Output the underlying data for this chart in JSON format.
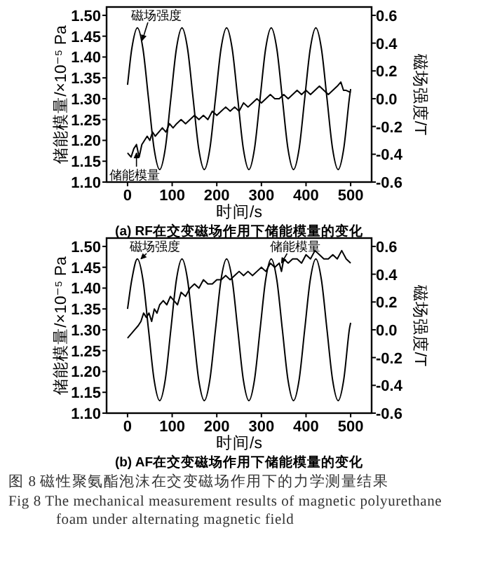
{
  "chart_data": [
    {
      "type": "line",
      "title": "(a) RF在交变磁场作用下储能模量的变化",
      "xlabel": "时间/s",
      "ylabel": "储能模量/×10⁻⁵ Pa",
      "y2label": "磁场强度/T",
      "xlim": [
        -47,
        547
      ],
      "xticks": [
        0,
        100,
        200,
        300,
        400,
        500
      ],
      "ylim": [
        1.1,
        1.52
      ],
      "yticks": [
        {
          "value": 1.1,
          "label": "1.10"
        },
        1.15,
        {
          "value": 1.2,
          "label": "1.20"
        },
        1.25,
        {
          "value": 1.3,
          "label": "1.30"
        },
        1.35,
        {
          "value": 1.4,
          "label": "1.40"
        },
        1.45,
        {
          "value": 1.5,
          "label": "1.50"
        }
      ],
      "y2lim": [
        -0.6,
        0.66
      ],
      "y2ticks": [
        {
          "value": -0.6,
          "label": "-0.6"
        },
        {
          "value": -0.4,
          "label": "-0.4"
        },
        {
          "value": -0.2,
          "label": "-0.2"
        },
        {
          "value": 0,
          "label": "0.0"
        },
        0.2,
        0.4,
        0.6
      ],
      "series": [
        {
          "color": "#000000",
          "axis": "y2",
          "x": [
            0,
            9.5,
            22,
            34.5,
            47,
            59.5,
            72,
            84.5,
            97,
            109.5,
            122,
            134.5,
            147,
            159.5,
            172,
            184.5,
            197,
            209.5,
            222,
            234.5,
            247,
            259.5,
            272,
            284.5,
            297,
            309.5,
            322,
            334.5,
            347,
            359.5,
            372,
            384.5,
            397,
            409.5,
            422,
            434.5,
            447,
            459.5,
            472,
            484.5,
            497,
            500
          ],
          "values": [
            0.1,
            0.36,
            0.51,
            0.36,
            0,
            -0.36,
            -0.51,
            -0.36,
            0,
            0.36,
            0.51,
            0.36,
            0,
            -0.36,
            -0.51,
            -0.36,
            0,
            0.36,
            0.51,
            0.36,
            0,
            -0.36,
            -0.51,
            -0.36,
            0,
            0.36,
            0.51,
            0.36,
            0,
            -0.36,
            -0.51,
            -0.36,
            0,
            0.36,
            0.51,
            0.36,
            0,
            -0.36,
            -0.51,
            -0.36,
            0,
            0.07
          ]
        },
        {
          "color": "#000000",
          "x": [
            0,
            8,
            14,
            20,
            26,
            32,
            38,
            44,
            50,
            56,
            62,
            70,
            78,
            86,
            94,
            102,
            110,
            120,
            130,
            140,
            150,
            160,
            170,
            180,
            190,
            200,
            210,
            220,
            230,
            240,
            250,
            260,
            270,
            280,
            290,
            300,
            310,
            320,
            330,
            340,
            350,
            360,
            370,
            380,
            390,
            400,
            410,
            420,
            430,
            440,
            450,
            460,
            470,
            478,
            484,
            490,
            500
          ],
          "values": [
            1.17,
            1.16,
            1.18,
            1.19,
            1.16,
            1.19,
            1.2,
            1.21,
            1.2,
            1.22,
            1.21,
            1.22,
            1.23,
            1.22,
            1.24,
            1.23,
            1.24,
            1.25,
            1.24,
            1.25,
            1.26,
            1.25,
            1.26,
            1.25,
            1.27,
            1.26,
            1.27,
            1.28,
            1.27,
            1.28,
            1.27,
            1.29,
            1.28,
            1.29,
            1.3,
            1.29,
            1.3,
            1.31,
            1.3,
            1.3,
            1.31,
            1.3,
            1.31,
            1.32,
            1.31,
            1.32,
            1.31,
            1.32,
            1.33,
            1.32,
            1.31,
            1.32,
            1.33,
            1.34,
            1.32,
            1.32,
            1.315
          ]
        }
      ],
      "annotations": [
        {
          "text": "磁场强度",
          "x": 33,
          "y": 1.44
        },
        {
          "text": "储能模量",
          "x": 20,
          "y": 1.17
        }
      ]
    },
    {
      "type": "line",
      "title": "(b) AF在交变磁场作用下储能模量的变化",
      "xlabel": "时间/s",
      "ylabel": "储能模量/×10⁻⁵ Pa",
      "y2label": "磁场强度/T",
      "xlim": [
        -47,
        547
      ],
      "xticks": [
        0,
        100,
        200,
        300,
        400,
        500
      ],
      "ylim": [
        1.1,
        1.52
      ],
      "yticks": [
        {
          "value": 1.1,
          "label": "1.10"
        },
        1.15,
        {
          "value": 1.2,
          "label": "1.20"
        },
        1.25,
        {
          "value": 1.3,
          "label": "1.30"
        },
        1.35,
        {
          "value": 1.4,
          "label": "1.40"
        },
        1.45,
        {
          "value": 1.5,
          "label": "1.50"
        }
      ],
      "y2lim": [
        -0.6,
        0.66
      ],
      "y2ticks": [
        {
          "value": -0.6,
          "label": "-0.6"
        },
        {
          "value": -0.4,
          "label": "-0.4"
        },
        {
          "value": -0.2,
          "label": "-0.2"
        },
        {
          "value": 0,
          "label": "0.0"
        },
        0.2,
        0.4,
        0.6
      ],
      "series": [
        {
          "color": "#000000",
          "axis": "y2",
          "x": [
            0,
            9.5,
            22,
            34.5,
            47,
            59.5,
            72,
            84.5,
            97,
            109.5,
            122,
            134.5,
            147,
            159.5,
            172,
            184.5,
            197,
            209.5,
            222,
            234.5,
            247,
            259.5,
            272,
            284.5,
            297,
            309.5,
            322,
            334.5,
            347,
            359.5,
            372,
            384.5,
            397,
            409.5,
            422,
            434.5,
            447,
            459.5,
            472,
            484.5,
            497,
            500
          ],
          "values": [
            0.15,
            0.36,
            0.51,
            0.36,
            0,
            -0.36,
            -0.51,
            -0.36,
            0,
            0.36,
            0.51,
            0.36,
            0,
            -0.36,
            -0.51,
            -0.36,
            0,
            0.36,
            0.51,
            0.36,
            0,
            -0.36,
            -0.51,
            -0.36,
            0,
            0.36,
            0.51,
            0.36,
            0,
            -0.36,
            -0.51,
            -0.36,
            0,
            0.36,
            0.51,
            0.36,
            0,
            -0.36,
            -0.51,
            -0.36,
            0,
            0.05
          ]
        },
        {
          "color": "#000000",
          "x": [
            0,
            8,
            16,
            24,
            30,
            36,
            42,
            48,
            54,
            60,
            66,
            72,
            80,
            88,
            96,
            104,
            112,
            120,
            130,
            140,
            150,
            160,
            170,
            180,
            190,
            200,
            210,
            220,
            230,
            240,
            250,
            260,
            270,
            280,
            290,
            300,
            310,
            320,
            330,
            340,
            345,
            350,
            360,
            370,
            380,
            390,
            400,
            410,
            420,
            430,
            440,
            450,
            460,
            470,
            480,
            490,
            500
          ],
          "values": [
            1.28,
            1.29,
            1.3,
            1.31,
            1.32,
            1.34,
            1.33,
            1.34,
            1.32,
            1.35,
            1.34,
            1.36,
            1.37,
            1.36,
            1.38,
            1.37,
            1.36,
            1.39,
            1.38,
            1.4,
            1.41,
            1.4,
            1.42,
            1.41,
            1.41,
            1.42,
            1.42,
            1.43,
            1.42,
            1.43,
            1.44,
            1.43,
            1.44,
            1.43,
            1.44,
            1.45,
            1.44,
            1.46,
            1.45,
            1.46,
            1.44,
            1.47,
            1.46,
            1.47,
            1.47,
            1.46,
            1.48,
            1.47,
            1.49,
            1.48,
            1.47,
            1.47,
            1.48,
            1.47,
            1.49,
            1.47,
            1.46
          ]
        }
      ],
      "annotations": [
        {
          "text": "磁场强度",
          "x": 30,
          "y": 1.47
        },
        {
          "text": "储能模量",
          "x": 345,
          "y": 1.46
        },
        "图 8  磁性聚氨酯泡沫在交变磁场作用下的力学测量结果",
        "Fig 8 The mechanical measurement results of magnetic polyurethane foam under alternating magnetic field"
      ]
    }
  ]
}
